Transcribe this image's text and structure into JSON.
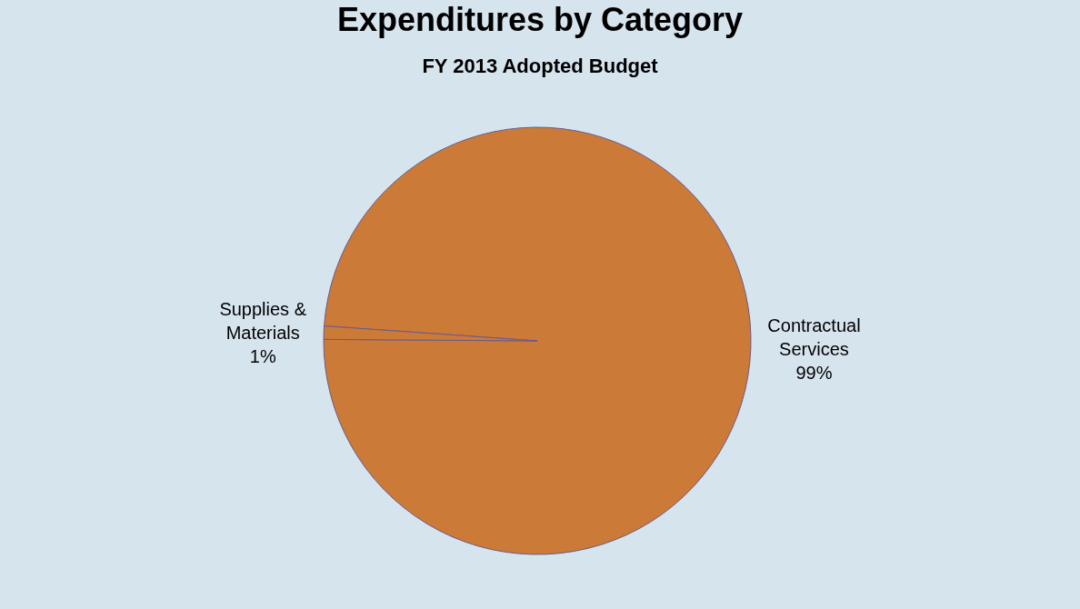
{
  "chart_data": {
    "type": "pie",
    "title": "Expenditures by Category",
    "subtitle": "FY 2013 Adopted Budget",
    "categories": [
      "Contractual Services",
      "Supplies & Materials"
    ],
    "values": [
      99,
      1
    ],
    "value_labels": [
      "99%",
      "1%"
    ],
    "colors": [
      "#cc7a38",
      "#cc7a38"
    ],
    "legend": false
  }
}
